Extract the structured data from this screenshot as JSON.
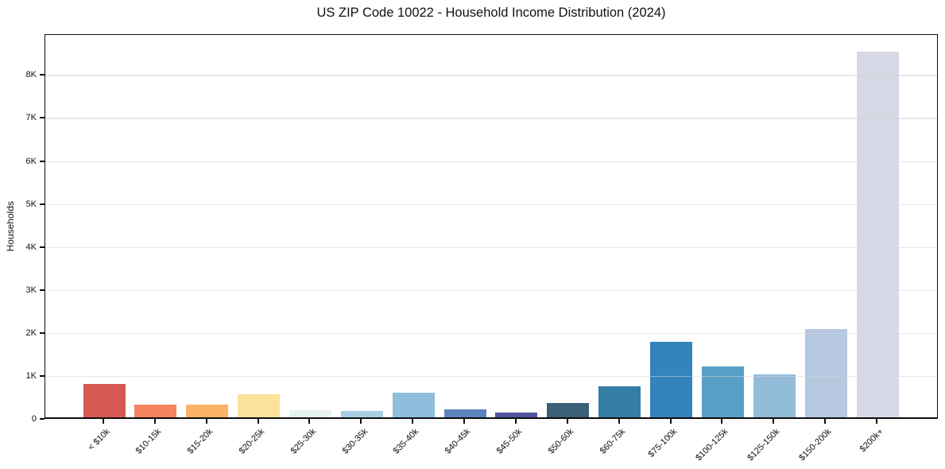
{
  "chart_data": {
    "type": "bar",
    "title": "US ZIP Code 10022 - Household Income Distribution (2024)",
    "xlabel": "",
    "ylabel": "Households",
    "categories": [
      "< $10k",
      "$10-15k",
      "$15-20k",
      "$20-25k",
      "$25-30k",
      "$30-35k",
      "$35-40k",
      "$40-45k",
      "$45-50k",
      "$50-60k",
      "$60-75k",
      "$75-100k",
      "$100-125k",
      "$125-150k",
      "$150-200k",
      "$200k+"
    ],
    "values": [
      780,
      300,
      300,
      530,
      160,
      150,
      575,
      190,
      115,
      330,
      730,
      1760,
      1190,
      1000,
      2060,
      8500
    ],
    "bar_colors": [
      "#d75853",
      "#f5845e",
      "#fab267",
      "#fce29a",
      "#e5f2ee",
      "#a6d0e3",
      "#8fbedd",
      "#5d83bf",
      "#5054a0",
      "#3a6178",
      "#347da3",
      "#3384bc",
      "#57a0c6",
      "#92bcda",
      "#b5c8e0",
      "#d6d8e6"
    ],
    "ylim": [
      0,
      8950
    ],
    "yticks": {
      "values": [
        0,
        1000,
        2000,
        3000,
        4000,
        5000,
        6000,
        7000,
        8000
      ],
      "labels": [
        "0",
        "1K",
        "2K",
        "3K",
        "4K",
        "5K",
        "6K",
        "7K",
        "8K"
      ]
    },
    "grid": "horizontal",
    "legend": "none"
  }
}
